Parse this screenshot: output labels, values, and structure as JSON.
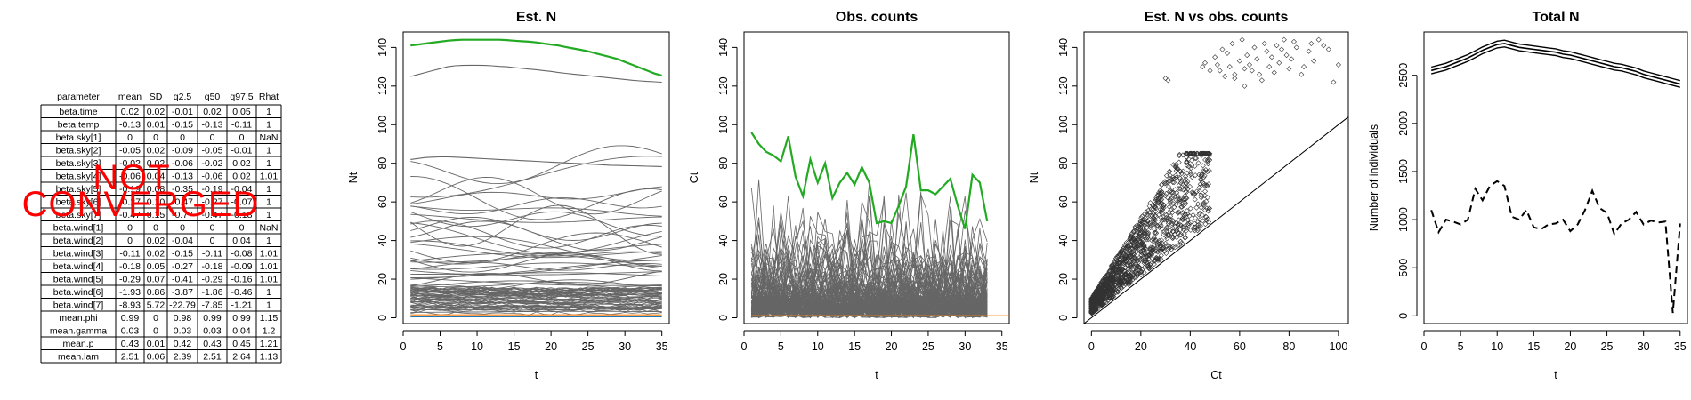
{
  "summary_table": {
    "columns": [
      "parameter",
      "mean",
      "SD",
      "q2.5",
      "q50",
      "q97.5",
      "Rhat"
    ],
    "rows": [
      [
        "beta.time",
        "0.02",
        "0.02",
        "-0.01",
        "0.02",
        "0.05",
        "1"
      ],
      [
        "beta.temp",
        "-0.13",
        "0.01",
        "-0.15",
        "-0.13",
        "-0.11",
        "1"
      ],
      [
        "beta.sky[1]",
        "0",
        "0",
        "0",
        "0",
        "0",
        "NaN"
      ],
      [
        "beta.sky[2]",
        "-0.05",
        "0.02",
        "-0.09",
        "-0.05",
        "-0.01",
        "1"
      ],
      [
        "beta.sky[3]",
        "-0.02",
        "0.02",
        "-0.06",
        "-0.02",
        "0.02",
        "1"
      ],
      [
        "beta.sky[4]",
        "-0.06",
        "0.04",
        "-0.13",
        "-0.06",
        "0.02",
        "1.01"
      ],
      [
        "beta.sky[5]",
        "-0.19",
        "0.08",
        "-0.35",
        "-0.19",
        "-0.04",
        "1"
      ],
      [
        "beta.sky[6]",
        "-0.27",
        "0.10",
        "-0.47",
        "-0.27",
        "-0.07",
        "1"
      ],
      [
        "beta.sky[7]",
        "-0.47",
        "0.15",
        "-0.77",
        "-0.47",
        "-0.18",
        "1"
      ],
      [
        "beta.wind[1]",
        "0",
        "0",
        "0",
        "0",
        "0",
        "NaN"
      ],
      [
        "beta.wind[2]",
        "0",
        "0.02",
        "-0.04",
        "0",
        "0.04",
        "1"
      ],
      [
        "beta.wind[3]",
        "-0.11",
        "0.02",
        "-0.15",
        "-0.11",
        "-0.08",
        "1.01"
      ],
      [
        "beta.wind[4]",
        "-0.18",
        "0.05",
        "-0.27",
        "-0.18",
        "-0.09",
        "1.01"
      ],
      [
        "beta.wind[5]",
        "-0.29",
        "0.07",
        "-0.41",
        "-0.29",
        "-0.16",
        "1.01"
      ],
      [
        "beta.wind[6]",
        "-1.93",
        "0.86",
        "-3.87",
        "-1.86",
        "-0.46",
        "1"
      ],
      [
        "beta.wind[7]",
        "-8.93",
        "5.72",
        "-22.79",
        "-7.85",
        "-1.21",
        "1"
      ],
      [
        "mean.phi",
        "0.99",
        "0",
        "0.98",
        "0.99",
        "0.99",
        "1.15"
      ],
      [
        "mean.gamma",
        "0.03",
        "0",
        "0.03",
        "0.03",
        "0.04",
        "1.2"
      ],
      [
        "mean.p",
        "0.43",
        "0.01",
        "0.42",
        "0.43",
        "0.45",
        "1.21"
      ],
      [
        "mean.lam",
        "2.51",
        "0.06",
        "2.39",
        "2.51",
        "2.64",
        "1.13"
      ]
    ],
    "watermark_line1": "NOT",
    "watermark_line2": "CONVERGED",
    "watermark_color": "#ff0000"
  },
  "chart_data": [
    {
      "type": "line",
      "title": "Est. N",
      "xlabel": "t",
      "ylabel": "Nt",
      "xlim": [
        0,
        36
      ],
      "ylim": [
        -3,
        148
      ],
      "xticks": [
        0,
        5,
        10,
        15,
        20,
        25,
        30,
        35
      ],
      "yticks": [
        0,
        20,
        40,
        60,
        80,
        100,
        120,
        140
      ],
      "x_range": [
        1,
        35
      ],
      "series_colors": {
        "background": "#666666",
        "highlight": "#22aa22",
        "flat": "#ff7f0e",
        "flat2": "#1f77b4"
      },
      "series": [
        {
          "name": "",
          "color": "#22aa22",
          "values": [
            141,
            141.5,
            142,
            142.5,
            143,
            143.5,
            143.8,
            144,
            144,
            144,
            144,
            144,
            144,
            143.8,
            143.5,
            143.2,
            143,
            142.6,
            142,
            141.5,
            141,
            140.2,
            139.5,
            138.8,
            138,
            137,
            136,
            135,
            134,
            132.5,
            131,
            129.5,
            128,
            126.5,
            125.5
          ]
        },
        {
          "name": "",
          "color": "#666666",
          "values": [
            125,
            126,
            127,
            128,
            129,
            130,
            130.5,
            130.7,
            130.8,
            130.8,
            130.7,
            130.5,
            130.2,
            130,
            129.6,
            129.2,
            128.8,
            128.5,
            128,
            127.6,
            127,
            126.6,
            126.2,
            125.8,
            125.4,
            125,
            124.6,
            124.2,
            123.8,
            123.4,
            123,
            122.7,
            122.4,
            122.2,
            122
          ]
        },
        {
          "name": "",
          "color": "#666666",
          "values": [
            82,
            82.5,
            83,
            83.2,
            83.3,
            83.3,
            83.2,
            83,
            82.8,
            82.6,
            82.4,
            82.2,
            82,
            81.8,
            81.6,
            81.4,
            81.2,
            81,
            80.8,
            80.6,
            80.4,
            80.2,
            80,
            79.8,
            79.6,
            79.4,
            79.2,
            79,
            78.9,
            78.8,
            78.7,
            78.6,
            78.5,
            78.4,
            78.3
          ]
        },
        {
          "name": "",
          "color": "#ff7f0e",
          "values": [
            1.5,
            1.5,
            1.5,
            1.5,
            1.5,
            1.5,
            1.5,
            1.5,
            1.5,
            1.5,
            1.5,
            1.5,
            1.5,
            1.5,
            1.5,
            1.5,
            1.5,
            1.5,
            1.5,
            1.5,
            1.5,
            1.5,
            1.5,
            1.5,
            1.5,
            1.5,
            1.5,
            1.5,
            1.5,
            1.5,
            1.5,
            1.5,
            1.5,
            1.5,
            1.5
          ]
        },
        {
          "name": "",
          "color": "#1f77b4",
          "values": [
            0.5,
            0.5,
            0.5,
            0.5,
            0.5,
            0.5,
            0.5,
            0.5,
            0.5,
            0.5,
            0.5,
            0.5,
            0.5,
            0.5,
            0.5,
            0.5,
            0.5,
            0.5,
            0.5,
            0.5,
            0.5,
            0.5,
            0.5,
            0.5,
            0.5,
            0.5,
            0.5,
            0.5,
            0.5,
            0.5,
            0.5,
            0.5,
            0.5,
            0.5,
            0.5
          ]
        }
      ],
      "background_levels": [
        74,
        70,
        66,
        64,
        61,
        58,
        56,
        54,
        52,
        50,
        48,
        46,
        44,
        42,
        40,
        38,
        36,
        35,
        34,
        32,
        30,
        29,
        28,
        27,
        26,
        24,
        22,
        21,
        20,
        19,
        18,
        17,
        16,
        15,
        14,
        13,
        12,
        11,
        10,
        9,
        8,
        7,
        6,
        5,
        4,
        3
      ]
    },
    {
      "type": "line",
      "title": "Obs. counts",
      "xlabel": "t",
      "ylabel": "Ct",
      "xlim": [
        0,
        36
      ],
      "ylim": [
        -3,
        148
      ],
      "xticks": [
        0,
        5,
        10,
        15,
        20,
        25,
        30,
        35
      ],
      "yticks": [
        0,
        20,
        40,
        60,
        80,
        100,
        120,
        140
      ],
      "x_range": [
        1,
        33
      ],
      "series": [
        {
          "name": "",
          "color": "#22aa22",
          "values": [
            96,
            90,
            86,
            84,
            81,
            94,
            73,
            63,
            82,
            70,
            80,
            62,
            70,
            75,
            69,
            78,
            70,
            49,
            50,
            49,
            58,
            68,
            95,
            66,
            66,
            64,
            68,
            72,
            58,
            46,
            74,
            70,
            50
          ]
        },
        {
          "name": "",
          "color": "#ff7f0e",
          "values": [
            1,
            1,
            1,
            1,
            1,
            1,
            1,
            1,
            1,
            1,
            1,
            1,
            1,
            1,
            1,
            1,
            1,
            1,
            1,
            1,
            1,
            1,
            1,
            1,
            1,
            1,
            1,
            1,
            1,
            1,
            1,
            1,
            1
          ]
        }
      ],
      "background_peaks": [
        78,
        72,
        60,
        55,
        50,
        45,
        42,
        40,
        38,
        35,
        32,
        30,
        28,
        26,
        25,
        24,
        22,
        20,
        18,
        16,
        15,
        14,
        12,
        10,
        8,
        6
      ]
    },
    {
      "type": "scatter",
      "title": "Est. N vs obs. counts",
      "xlabel": "Ct",
      "ylabel": "Nt",
      "xlim": [
        -3,
        104
      ],
      "ylim": [
        -3,
        148
      ],
      "xticks": [
        0,
        20,
        40,
        60,
        80,
        100
      ],
      "yticks": [
        0,
        20,
        40,
        60,
        80,
        100,
        120,
        140
      ],
      "reference_line": {
        "slope": 1,
        "intercept": 0
      },
      "upper_cluster": [
        [
          30,
          124
        ],
        [
          31,
          123
        ],
        [
          45,
          130
        ],
        [
          46,
          132
        ],
        [
          48,
          128
        ],
        [
          50,
          135
        ],
        [
          51,
          131
        ],
        [
          52,
          128
        ],
        [
          53,
          139
        ],
        [
          54,
          125
        ],
        [
          55,
          137
        ],
        [
          56,
          130
        ],
        [
          57,
          142
        ],
        [
          58,
          126
        ],
        [
          60,
          133
        ],
        [
          61,
          144
        ],
        [
          62,
          129
        ],
        [
          63,
          136
        ],
        [
          64,
          131
        ],
        [
          65,
          128
        ],
        [
          66,
          140
        ],
        [
          67,
          134
        ],
        [
          68,
          126
        ],
        [
          70,
          142
        ],
        [
          71,
          138
        ],
        [
          72,
          130
        ],
        [
          73,
          135
        ],
        [
          74,
          127
        ],
        [
          75,
          141
        ],
        [
          76,
          132
        ],
        [
          77,
          139
        ],
        [
          78,
          144
        ],
        [
          79,
          136
        ],
        [
          80,
          129
        ],
        [
          81,
          134
        ],
        [
          83,
          140
        ],
        [
          85,
          126
        ],
        [
          88,
          138
        ],
        [
          90,
          133
        ],
        [
          92,
          144
        ],
        [
          94,
          141
        ],
        [
          96,
          139
        ],
        [
          98,
          122
        ],
        [
          100,
          131
        ],
        [
          58,
          124
        ],
        [
          62,
          120
        ],
        [
          69,
          123
        ],
        [
          86,
          130
        ],
        [
          82,
          143
        ],
        [
          89,
          142
        ]
      ],
      "lower_cluster_note": ""
    },
    {
      "type": "line",
      "title": "Total N",
      "xlabel": "t",
      "ylabel": "Number of individuals",
      "xlim": [
        0,
        36
      ],
      "ylim": [
        -80,
        2950
      ],
      "xticks": [
        0,
        5,
        10,
        15,
        20,
        25,
        30,
        35
      ],
      "yticks": [
        0,
        500,
        1000,
        1500,
        2000,
        2500
      ],
      "series": [
        {
          "name": "",
          "style": "solid-band",
          "x": [
            1,
            2,
            3,
            4,
            5,
            6,
            7,
            8,
            9,
            10,
            11,
            12,
            13,
            14,
            15,
            16,
            17,
            18,
            19,
            20,
            21,
            22,
            23,
            24,
            25,
            26,
            27,
            28,
            29,
            30,
            31,
            32,
            33,
            34,
            35
          ],
          "values": [
            2550,
            2570,
            2590,
            2620,
            2650,
            2680,
            2720,
            2760,
            2790,
            2820,
            2830,
            2810,
            2790,
            2780,
            2770,
            2760,
            2750,
            2740,
            2720,
            2710,
            2690,
            2670,
            2650,
            2630,
            2610,
            2590,
            2580,
            2560,
            2540,
            2510,
            2490,
            2470,
            2450,
            2430,
            2410
          ]
        },
        {
          "name": "",
          "style": "dashed",
          "x": [
            1,
            2,
            3,
            4,
            5,
            6,
            7,
            8,
            9,
            10,
            11,
            12,
            13,
            14,
            15,
            16,
            17,
            18,
            19,
            20,
            21,
            22,
            23,
            24,
            25,
            26,
            27,
            28,
            29,
            30,
            31,
            32,
            33,
            34,
            35
          ],
          "values": [
            1100,
            870,
            1000,
            980,
            950,
            1000,
            1320,
            1200,
            1350,
            1400,
            1350,
            1030,
            1000,
            1100,
            920,
            900,
            950,
            960,
            1000,
            880,
            950,
            1100,
            1300,
            1120,
            1070,
            850,
            960,
            1000,
            1080,
            950,
            990,
            970,
            980,
            30,
            960
          ]
        }
      ]
    }
  ]
}
